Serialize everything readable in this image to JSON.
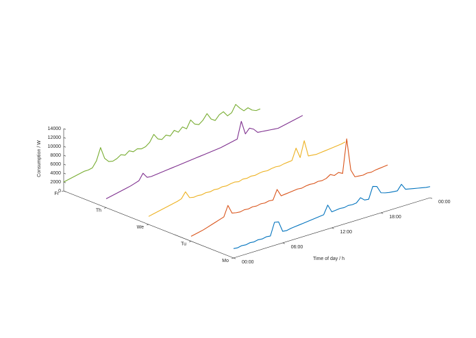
{
  "chart_data": {
    "type": "waterfall3d",
    "xlabel": "Time of day / h",
    "zlabel": "Consumption / W",
    "x": [
      0,
      0.5,
      1,
      1.5,
      2,
      2.5,
      3,
      3.5,
      4,
      4.5,
      5,
      5.5,
      6,
      6.5,
      7,
      7.5,
      8,
      8.5,
      9,
      9.5,
      10,
      10.5,
      11,
      11.5,
      12,
      12.5,
      13,
      13.5,
      14,
      14.5,
      15,
      15.5,
      16,
      16.5,
      17,
      17.5,
      18,
      18.5,
      19,
      19.5,
      20,
      20.5,
      21,
      21.5,
      22,
      22.5,
      23,
      23.5,
      24
    ],
    "xlim": [
      0,
      24
    ],
    "xticks": [
      {
        "value": 0,
        "label": "00:00"
      },
      {
        "value": 6,
        "label": "06:00"
      },
      {
        "value": 12,
        "label": "12:00"
      },
      {
        "value": 18,
        "label": "18:00"
      },
      {
        "value": 24,
        "label": "00:00"
      }
    ],
    "categories": [
      "Mo",
      "Tu",
      "We",
      "Th",
      "Fr"
    ],
    "zlim": [
      0,
      14000
    ],
    "zticks": [
      0,
      2000,
      4000,
      6000,
      8000,
      10000,
      12000,
      14000
    ],
    "series": [
      {
        "color": "#0072bd",
        "values": [
          2100,
          2000,
          2200,
          2100,
          2300,
          2200,
          2400,
          2300,
          2500,
          2400,
          5200,
          5000,
          2600,
          2500,
          2700,
          2800,
          2900,
          3000,
          3100,
          3200,
          3300,
          3400,
          3500,
          5400,
          3600,
          3700,
          3800,
          3700,
          3900,
          3800,
          3900,
          4800,
          4000,
          3900,
          6500,
          6200,
          4500,
          4200,
          4000,
          3900,
          3800,
          5000,
          3600,
          3400,
          3200,
          3000,
          2800,
          2600,
          2500
        ]
      },
      {
        "color": "#d95319",
        "values": [
          1100,
          1300,
          1500,
          1700,
          2000,
          2300,
          2600,
          2900,
          3200,
          5500,
          3500,
          3300,
          3200,
          3400,
          3300,
          3500,
          3400,
          3600,
          3500,
          3700,
          3600,
          5700,
          4000,
          4100,
          4200,
          4300,
          4400,
          4300,
          4500,
          4600,
          4500,
          4700,
          4600,
          4800,
          5400,
          4900,
          5300,
          4800,
          12300,
          5000,
          3200,
          3100,
          3000,
          3200,
          3100,
          3300,
          3400,
          3500,
          3600
        ]
      },
      {
        "color": "#edb120",
        "values": [
          1800,
          2000,
          2200,
          2400,
          2600,
          2800,
          3000,
          3200,
          3500,
          4800,
          3200,
          3000,
          3100,
          3000,
          3200,
          3100,
          3300,
          3200,
          3400,
          3300,
          3500,
          3600,
          3400,
          3700,
          3600,
          3800,
          3700,
          3900,
          4000,
          3900,
          4100,
          4200,
          4100,
          4300,
          4400,
          4500,
          7000,
          4600,
          8100,
          4400,
          4300,
          4200,
          4300,
          4400,
          4500,
          4600,
          4700,
          4800,
          5000
        ]
      },
      {
        "color": "#7e2f8e",
        "values": [
          2000,
          2200,
          2400,
          2600,
          2800,
          3000,
          3200,
          3500,
          3800,
          5200,
          4000,
          3900,
          4000,
          4100,
          4200,
          4300,
          4400,
          4500,
          4600,
          4700,
          4800,
          4900,
          5000,
          5100,
          5200,
          5300,
          5400,
          5500,
          5600,
          5800,
          6000,
          6200,
          6400,
          10100,
          7000,
          8000,
          7500,
          6500,
          6400,
          6300,
          6200,
          6100,
          6000,
          6200,
          6400,
          6600,
          6800,
          7000,
          7200
        ]
      },
      {
        "color": "#77ac30",
        "values": [
          2000,
          2200,
          2400,
          2600,
          2800,
          3000,
          3000,
          3200,
          4500,
          7200,
          4500,
          3500,
          3300,
          3600,
          4200,
          3800,
          4500,
          4000,
          4400,
          4100,
          4300,
          5000,
          6500,
          5200,
          4800,
          5500,
          5000,
          6000,
          5300,
          6200,
          5500,
          7200,
          6000,
          5600,
          6300,
          7500,
          6000,
          5400,
          6400,
          6800,
          5600,
          6000,
          7600,
          6500,
          5600,
          6000,
          5200,
          4800,
          4900
        ]
      }
    ]
  }
}
